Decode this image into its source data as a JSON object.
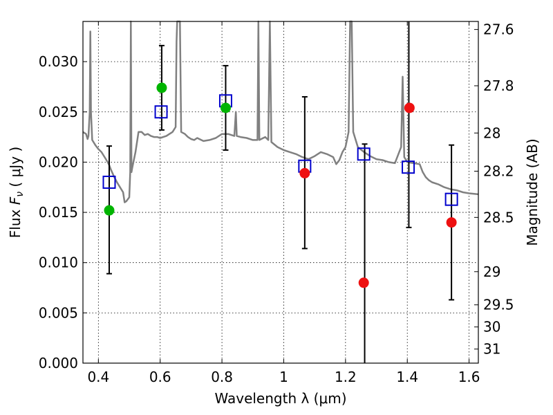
{
  "chart_data": {
    "type": "scatter",
    "xlabel": "Wavelength  λ (μm)",
    "ylabel": "Flux  F_ν  ( μJy )",
    "ylabel_parts": {
      "pre": "Flux  ",
      "main": "F",
      "sub": "ν",
      "post": "  ( μJy )"
    },
    "ylabel_right": "Magnitude (AB)",
    "xlim": [
      0.35,
      1.63
    ],
    "ylim": [
      0.0,
      0.034
    ],
    "grid": true,
    "x_ticks": [
      {
        "value": 0.4,
        "label": "0.4"
      },
      {
        "value": 0.6,
        "label": "0.6"
      },
      {
        "value": 0.8,
        "label": "0.8"
      },
      {
        "value": 1.0,
        "label": "1"
      },
      {
        "value": 1.2,
        "label": "1.2"
      },
      {
        "value": 1.4,
        "label": "1.4"
      },
      {
        "value": 1.6,
        "label": "1.6"
      }
    ],
    "y_ticks": [
      {
        "value": 0.0,
        "label": "0.000"
      },
      {
        "value": 0.005,
        "label": "0.005"
      },
      {
        "value": 0.01,
        "label": "0.010"
      },
      {
        "value": 0.015,
        "label": "0.015"
      },
      {
        "value": 0.02,
        "label": "0.020"
      },
      {
        "value": 0.025,
        "label": "0.025"
      },
      {
        "value": 0.03,
        "label": "0.030"
      }
    ],
    "y_right_ticks": [
      {
        "label": "27.6",
        "flux": 0.0332
      },
      {
        "label": "27.8",
        "flux": 0.0276
      },
      {
        "label": "28",
        "flux": 0.0229
      },
      {
        "label": "28.2",
        "flux": 0.0191
      },
      {
        "label": "28.5",
        "flux": 0.0145
      },
      {
        "label": "29",
        "flux": 0.0091
      },
      {
        "label": "29.5",
        "flux": 0.0058
      },
      {
        "label": "30",
        "flux": 0.0036
      },
      {
        "label": "31",
        "flux": 0.0014
      }
    ],
    "model_spectrum": {
      "color": "#808080",
      "points": [
        [
          0.35,
          0.023
        ],
        [
          0.36,
          0.0228
        ],
        [
          0.365,
          0.0223
        ],
        [
          0.368,
          0.0226
        ],
        [
          0.372,
          0.025
        ],
        [
          0.374,
          0.033
        ],
        [
          0.376,
          0.025
        ],
        [
          0.38,
          0.0222
        ],
        [
          0.39,
          0.0217
        ],
        [
          0.4,
          0.0213
        ],
        [
          0.41,
          0.021
        ],
        [
          0.42,
          0.0205
        ],
        [
          0.43,
          0.02
        ],
        [
          0.435,
          0.0197
        ],
        [
          0.44,
          0.0193
        ],
        [
          0.45,
          0.0186
        ],
        [
          0.46,
          0.018
        ],
        [
          0.47,
          0.0175
        ],
        [
          0.48,
          0.017
        ],
        [
          0.485,
          0.016
        ],
        [
          0.49,
          0.0161
        ],
        [
          0.5,
          0.0165
        ],
        [
          0.503,
          0.019
        ],
        [
          0.505,
          0.034
        ],
        [
          0.507,
          0.019
        ],
        [
          0.51,
          0.0195
        ],
        [
          0.52,
          0.021
        ],
        [
          0.53,
          0.023
        ],
        [
          0.54,
          0.023
        ],
        [
          0.55,
          0.0227
        ],
        [
          0.56,
          0.0228
        ],
        [
          0.57,
          0.0226
        ],
        [
          0.58,
          0.0225
        ],
        [
          0.59,
          0.0225
        ],
        [
          0.6,
          0.0224
        ],
        [
          0.62,
          0.0226
        ],
        [
          0.63,
          0.0228
        ],
        [
          0.64,
          0.023
        ],
        [
          0.65,
          0.0235
        ],
        [
          0.653,
          0.032
        ],
        [
          0.655,
          0.034
        ],
        [
          0.658,
          0.034
        ],
        [
          0.661,
          0.034
        ],
        [
          0.664,
          0.034
        ],
        [
          0.668,
          0.023
        ],
        [
          0.68,
          0.0228
        ],
        [
          0.69,
          0.0225
        ],
        [
          0.7,
          0.0223
        ],
        [
          0.71,
          0.0222
        ],
        [
          0.72,
          0.0224
        ],
        [
          0.74,
          0.0221
        ],
        [
          0.76,
          0.0222
        ],
        [
          0.78,
          0.0224
        ],
        [
          0.8,
          0.0228
        ],
        [
          0.82,
          0.0228
        ],
        [
          0.84,
          0.0226
        ],
        [
          0.845,
          0.025
        ],
        [
          0.848,
          0.0226
        ],
        [
          0.86,
          0.0225
        ],
        [
          0.88,
          0.0224
        ],
        [
          0.9,
          0.0222
        ],
        [
          0.915,
          0.0222
        ],
        [
          0.918,
          0.034
        ],
        [
          0.921,
          0.0222
        ],
        [
          0.94,
          0.0225
        ],
        [
          0.95,
          0.0222
        ],
        [
          0.955,
          0.034
        ],
        [
          0.96,
          0.022
        ],
        [
          0.98,
          0.0215
        ],
        [
          1.0,
          0.0212
        ],
        [
          1.02,
          0.021
        ],
        [
          1.04,
          0.0208
        ],
        [
          1.06,
          0.0205
        ],
        [
          1.08,
          0.0203
        ],
        [
          1.1,
          0.0206
        ],
        [
          1.12,
          0.021
        ],
        [
          1.14,
          0.0208
        ],
        [
          1.16,
          0.0205
        ],
        [
          1.17,
          0.0198
        ],
        [
          1.18,
          0.0202
        ],
        [
          1.19,
          0.021
        ],
        [
          1.2,
          0.0215
        ],
        [
          1.21,
          0.023
        ],
        [
          1.215,
          0.034
        ],
        [
          1.22,
          0.034
        ],
        [
          1.225,
          0.023
        ],
        [
          1.24,
          0.0215
        ],
        [
          1.26,
          0.021
        ],
        [
          1.28,
          0.0206
        ],
        [
          1.3,
          0.0203
        ],
        [
          1.32,
          0.0202
        ],
        [
          1.34,
          0.02
        ],
        [
          1.36,
          0.0199
        ],
        [
          1.38,
          0.0215
        ],
        [
          1.385,
          0.0285
        ],
        [
          1.39,
          0.0205
        ],
        [
          1.4,
          0.02
        ],
        [
          1.42,
          0.0199
        ],
        [
          1.44,
          0.0198
        ],
        [
          1.45,
          0.019
        ],
        [
          1.46,
          0.0185
        ],
        [
          1.47,
          0.0182
        ],
        [
          1.48,
          0.018
        ],
        [
          1.5,
          0.0178
        ],
        [
          1.52,
          0.0175
        ],
        [
          1.54,
          0.0173
        ],
        [
          1.56,
          0.0172
        ],
        [
          1.58,
          0.017
        ],
        [
          1.6,
          0.0169
        ],
        [
          1.63,
          0.0168
        ]
      ]
    },
    "series": [
      {
        "marker": "square",
        "color": "#0000cc",
        "points": [
          {
            "x": 0.435,
            "y": 0.018
          },
          {
            "x": 0.603,
            "y": 0.025
          },
          {
            "x": 0.812,
            "y": 0.0261
          },
          {
            "x": 1.068,
            "y": 0.0196
          },
          {
            "x": 1.259,
            "y": 0.0208
          },
          {
            "x": 1.403,
            "y": 0.0195
          },
          {
            "x": 1.543,
            "y": 0.0163
          }
        ]
      },
      {
        "marker": "circle",
        "color": "#00b400",
        "points": [
          {
            "x": 0.435,
            "y": 0.0152
          },
          {
            "x": 0.605,
            "y": 0.0274
          },
          {
            "x": 0.812,
            "y": 0.0254
          }
        ]
      },
      {
        "marker": "circle",
        "color": "#ee1111",
        "points": [
          {
            "x": 1.068,
            "y": 0.0189
          },
          {
            "x": 1.259,
            "y": 0.008
          },
          {
            "x": 1.407,
            "y": 0.0254
          },
          {
            "x": 1.543,
            "y": 0.014
          }
        ]
      }
    ],
    "error_bars": [
      {
        "x": 0.435,
        "low": 0.0089,
        "high": 0.0216
      },
      {
        "x": 0.605,
        "low": 0.0232,
        "high": 0.0316
      },
      {
        "x": 0.812,
        "low": 0.0212,
        "high": 0.0296
      },
      {
        "x": 1.068,
        "low": 0.0114,
        "high": 0.0265
      },
      {
        "x": 1.262,
        "low": 0.0,
        "high": 0.0218
      },
      {
        "x": 1.405,
        "low": 0.0135,
        "high": 0.034
      },
      {
        "x": 1.543,
        "low": 0.0063,
        "high": 0.0217
      }
    ]
  }
}
